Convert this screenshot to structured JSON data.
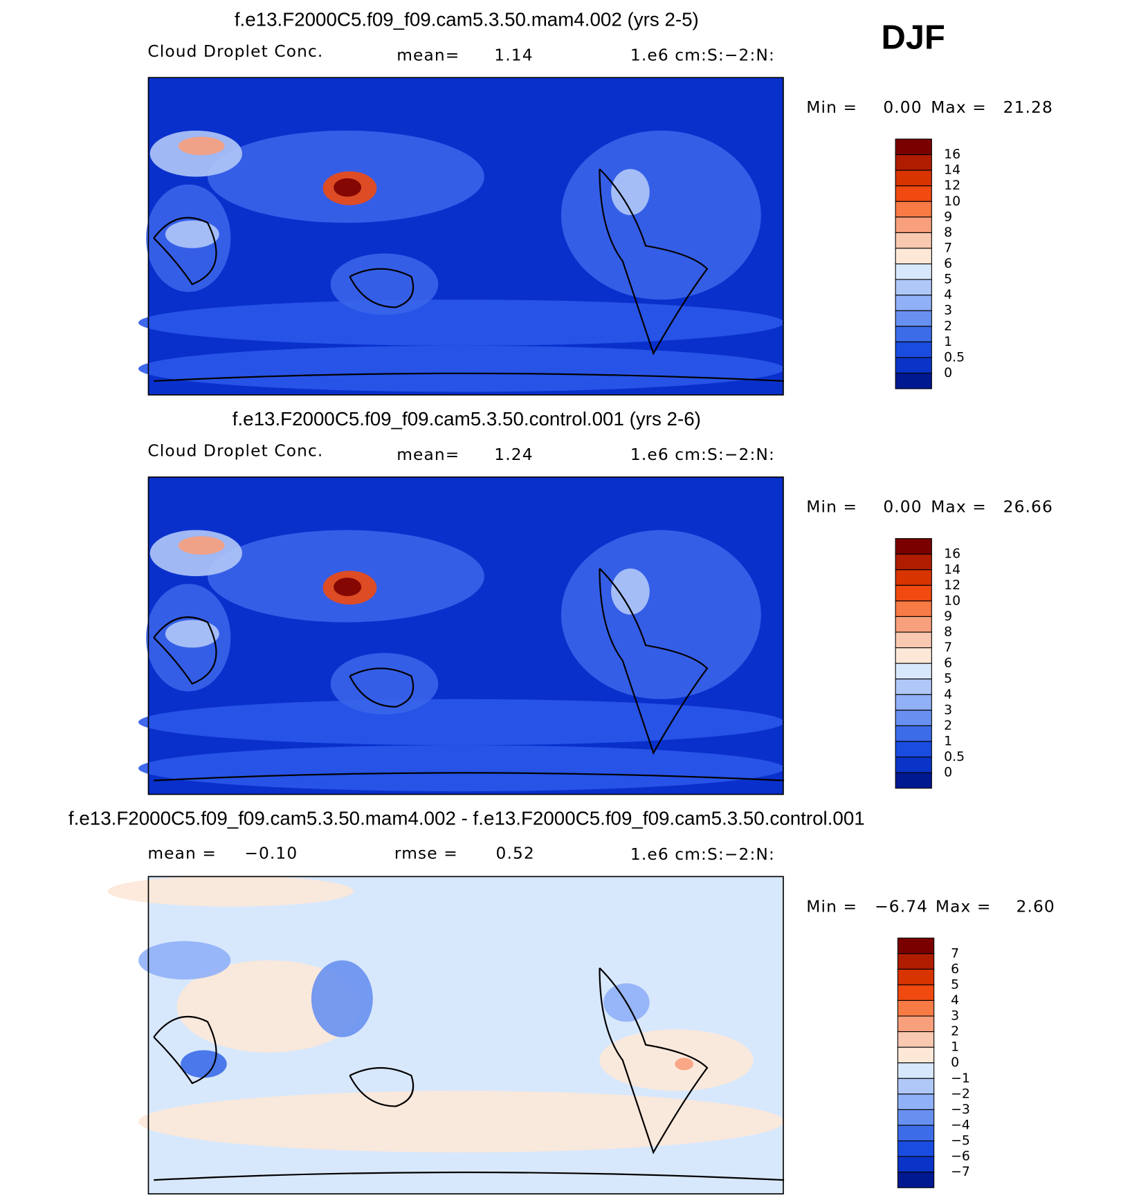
{
  "season": "DJF",
  "panels": [
    {
      "title": "f.e13.F2000C5.f09_f09.cam5.3.50.mam4.002 (yrs 2-5)",
      "left": "Cloud Droplet Conc.",
      "mid_label": "mean=",
      "mid_value": "1.14",
      "units": "1.e6 cm:S:−2:N:",
      "min_label": "Min =",
      "min": "0.00",
      "max_label": "Max =",
      "max": "21.28",
      "colorbar": [
        "16",
        "14",
        "12",
        "10",
        "9",
        "8",
        "7",
        "6",
        "5",
        "4",
        "3",
        "2",
        "1",
        "0.5",
        "0"
      ]
    },
    {
      "title": "f.e13.F2000C5.f09_f09.cam5.3.50.control.001 (yrs 2-6)",
      "left": "Cloud Droplet Conc.",
      "mid_label": "mean=",
      "mid_value": "1.24",
      "units": "1.e6 cm:S:−2:N:",
      "min_label": "Min =",
      "min": "0.00",
      "max_label": "Max =",
      "max": "26.66",
      "colorbar": [
        "16",
        "14",
        "12",
        "10",
        "9",
        "8",
        "7",
        "6",
        "5",
        "4",
        "3",
        "2",
        "1",
        "0.5",
        "0"
      ]
    },
    {
      "title": "f.e13.F2000C5.f09_f09.cam5.3.50.mam4.002 - f.e13.F2000C5.f09_f09.cam5.3.50.control.001",
      "left_label": "mean =",
      "left_value": "−0.10",
      "mid_label": "rmse =",
      "mid_value": "0.52",
      "units": "1.e6 cm:S:−2:N:",
      "min_label": "Min =",
      "min": "−6.74",
      "max_label": "Max =",
      "max": "2.60",
      "colorbar": [
        "7",
        "6",
        "5",
        "4",
        "3",
        "2",
        "1",
        "0",
        "−1",
        "−2",
        "−3",
        "−4",
        "−5",
        "−6",
        "−7"
      ]
    }
  ]
}
